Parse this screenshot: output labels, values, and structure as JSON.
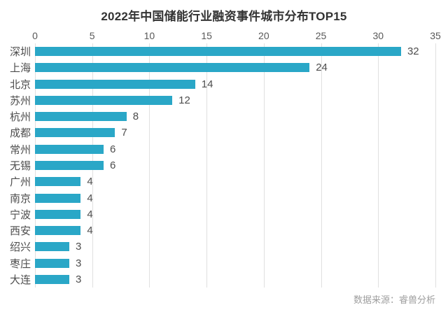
{
  "title": "2022年中国储能行业融资事件城市分布TOP15",
  "source_note": "数据来源：睿兽分析",
  "colors": {
    "bar": "#2AA7C7",
    "grid": "#e0e0e0",
    "title": "#333333",
    "label": "#4d4d4d",
    "tick": "#595959",
    "source": "#9e9e9e",
    "background": "#ffffff"
  },
  "chart_data": {
    "type": "bar",
    "orientation": "horizontal",
    "title": "2022年中国储能行业融资事件城市分布TOP15",
    "categories": [
      "深圳",
      "上海",
      "北京",
      "苏州",
      "杭州",
      "成都",
      "常州",
      "无锡",
      "广州",
      "南京",
      "宁波",
      "西安",
      "绍兴",
      "枣庄",
      "大连"
    ],
    "values": [
      32,
      24,
      14,
      12,
      8,
      7,
      6,
      6,
      4,
      4,
      4,
      4,
      3,
      3,
      3
    ],
    "xlabel": "",
    "ylabel": "",
    "xlim": [
      0,
      35
    ],
    "xticks": [
      0,
      5,
      10,
      15,
      20,
      25,
      30,
      35
    ],
    "axis_position": "top",
    "grid": true,
    "legend": false,
    "data_labels": true,
    "source_note": "数据来源：睿兽分析"
  }
}
